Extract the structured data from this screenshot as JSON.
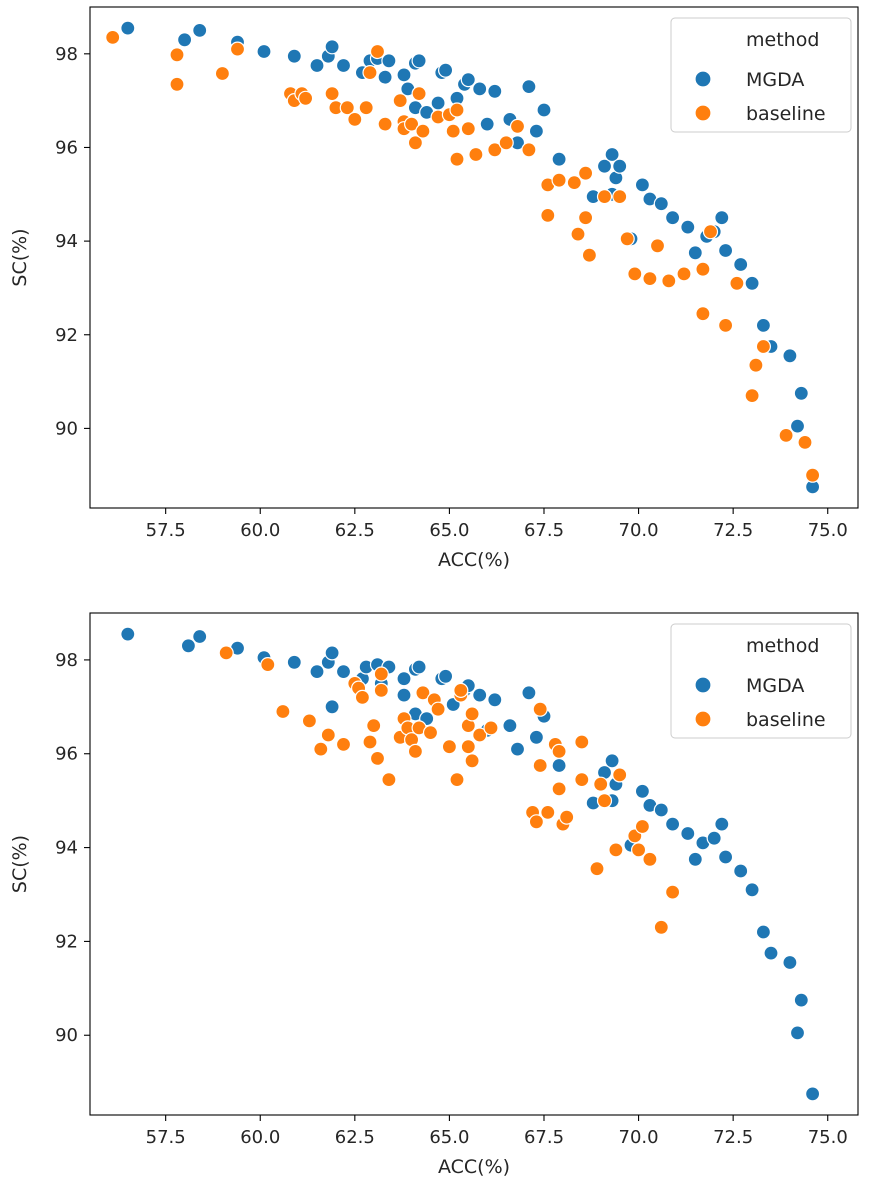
{
  "chart_data": [
    {
      "type": "scatter",
      "title": "",
      "xlabel": "ACC(%)",
      "ylabel": "SC(%)",
      "xlim": [
        55.5,
        75.8
      ],
      "ylim": [
        88.3,
        99.0
      ],
      "xticks": [
        57.5,
        60.0,
        62.5,
        65.0,
        67.5,
        70.0,
        72.5,
        75.0
      ],
      "xtick_labels": [
        "57.5",
        "60.0",
        "62.5",
        "65.0",
        "67.5",
        "70.0",
        "72.5",
        "75.0"
      ],
      "yticks": [
        90,
        92,
        94,
        96,
        98
      ],
      "ytick_labels": [
        "90",
        "92",
        "94",
        "96",
        "98"
      ],
      "grid": false,
      "legend": {
        "title": "method",
        "placement": "upper-right"
      },
      "series": [
        {
          "name": "MGDA",
          "color": "#1f77b4",
          "points": [
            [
              56.5,
              98.55
            ],
            [
              58.0,
              98.3
            ],
            [
              58.4,
              98.5
            ],
            [
              59.4,
              98.25
            ],
            [
              60.1,
              98.05
            ],
            [
              60.9,
              97.95
            ],
            [
              61.5,
              97.75
            ],
            [
              61.8,
              97.95
            ],
            [
              61.9,
              98.15
            ],
            [
              62.2,
              97.75
            ],
            [
              62.7,
              97.6
            ],
            [
              62.9,
              97.85
            ],
            [
              63.1,
              97.9
            ],
            [
              63.3,
              97.5
            ],
            [
              63.4,
              97.85
            ],
            [
              63.8,
              97.55
            ],
            [
              63.9,
              97.25
            ],
            [
              64.1,
              97.8
            ],
            [
              64.2,
              97.85
            ],
            [
              64.1,
              96.85
            ],
            [
              64.4,
              96.75
            ],
            [
              64.7,
              96.95
            ],
            [
              64.8,
              97.6
            ],
            [
              64.9,
              97.65
            ],
            [
              65.2,
              97.05
            ],
            [
              65.4,
              97.35
            ],
            [
              65.5,
              97.45
            ],
            [
              65.8,
              97.25
            ],
            [
              66.0,
              96.5
            ],
            [
              66.2,
              97.2
            ],
            [
              66.6,
              96.6
            ],
            [
              66.8,
              96.1
            ],
            [
              67.1,
              97.3
            ],
            [
              67.3,
              96.35
            ],
            [
              67.5,
              96.8
            ],
            [
              67.9,
              95.75
            ],
            [
              68.8,
              94.95
            ],
            [
              69.1,
              95.6
            ],
            [
              69.3,
              95.85
            ],
            [
              69.4,
              95.35
            ],
            [
              69.3,
              95.0
            ],
            [
              69.5,
              95.6
            ],
            [
              69.8,
              94.05
            ],
            [
              70.1,
              95.2
            ],
            [
              70.3,
              94.9
            ],
            [
              70.6,
              94.8
            ],
            [
              70.9,
              94.5
            ],
            [
              71.3,
              94.3
            ],
            [
              71.5,
              93.75
            ],
            [
              71.8,
              94.1
            ],
            [
              72.0,
              94.2
            ],
            [
              72.2,
              94.5
            ],
            [
              72.3,
              93.8
            ],
            [
              72.7,
              93.5
            ],
            [
              73.0,
              93.1
            ],
            [
              73.3,
              92.2
            ],
            [
              73.5,
              91.75
            ],
            [
              74.0,
              91.55
            ],
            [
              74.2,
              90.05
            ],
            [
              74.3,
              90.75
            ],
            [
              74.6,
              88.75
            ]
          ]
        },
        {
          "name": "baseline",
          "color": "#ff7f0e",
          "points": [
            [
              56.1,
              98.35
            ],
            [
              57.8,
              97.98
            ],
            [
              57.8,
              97.35
            ],
            [
              59.0,
              97.58
            ],
            [
              59.4,
              98.1
            ],
            [
              60.8,
              97.15
            ],
            [
              60.9,
              97.0
            ],
            [
              61.1,
              97.15
            ],
            [
              61.2,
              97.05
            ],
            [
              61.9,
              97.15
            ],
            [
              62.0,
              96.85
            ],
            [
              62.3,
              96.85
            ],
            [
              62.5,
              96.6
            ],
            [
              62.8,
              96.85
            ],
            [
              62.9,
              97.6
            ],
            [
              63.1,
              98.05
            ],
            [
              63.3,
              96.5
            ],
            [
              63.7,
              97.0
            ],
            [
              63.8,
              96.55
            ],
            [
              63.8,
              96.4
            ],
            [
              64.0,
              96.5
            ],
            [
              64.1,
              96.1
            ],
            [
              64.2,
              97.15
            ],
            [
              64.3,
              96.35
            ],
            [
              64.7,
              96.65
            ],
            [
              65.0,
              96.7
            ],
            [
              65.1,
              96.35
            ],
            [
              65.2,
              96.8
            ],
            [
              65.2,
              95.75
            ],
            [
              65.5,
              96.4
            ],
            [
              65.7,
              95.85
            ],
            [
              66.2,
              95.95
            ],
            [
              66.5,
              96.1
            ],
            [
              66.8,
              96.45
            ],
            [
              67.1,
              95.95
            ],
            [
              67.6,
              95.2
            ],
            [
              67.6,
              94.55
            ],
            [
              67.9,
              95.3
            ],
            [
              68.3,
              95.25
            ],
            [
              68.4,
              94.15
            ],
            [
              68.6,
              94.5
            ],
            [
              68.6,
              95.45
            ],
            [
              68.7,
              93.7
            ],
            [
              69.1,
              94.95
            ],
            [
              69.5,
              94.95
            ],
            [
              69.7,
              94.05
            ],
            [
              69.9,
              93.3
            ],
            [
              70.3,
              93.2
            ],
            [
              70.5,
              93.9
            ],
            [
              70.8,
              93.15
            ],
            [
              71.2,
              93.3
            ],
            [
              71.7,
              93.4
            ],
            [
              71.9,
              94.2
            ],
            [
              71.7,
              92.45
            ],
            [
              72.3,
              92.2
            ],
            [
              72.6,
              93.1
            ],
            [
              73.0,
              90.7
            ],
            [
              73.1,
              91.35
            ],
            [
              73.3,
              91.75
            ],
            [
              73.9,
              89.85
            ],
            [
              74.4,
              89.7
            ],
            [
              74.6,
              89.0
            ]
          ]
        }
      ]
    },
    {
      "type": "scatter",
      "title": "",
      "xlabel": "ACC(%)",
      "ylabel": "SC(%)",
      "xlim": [
        55.5,
        75.8
      ],
      "ylim": [
        88.3,
        99.0
      ],
      "xticks": [
        57.5,
        60.0,
        62.5,
        65.0,
        67.5,
        70.0,
        72.5,
        75.0
      ],
      "xtick_labels": [
        "57.5",
        "60.0",
        "62.5",
        "65.0",
        "67.5",
        "70.0",
        "72.5",
        "75.0"
      ],
      "yticks": [
        90,
        92,
        94,
        96,
        98
      ],
      "ytick_labels": [
        "90",
        "92",
        "94",
        "96",
        "98"
      ],
      "grid": false,
      "legend": {
        "title": "method",
        "placement": "upper-right"
      },
      "series": [
        {
          "name": "MGDA",
          "color": "#1f77b4",
          "points": [
            [
              56.5,
              98.55
            ],
            [
              58.1,
              98.3
            ],
            [
              58.4,
              98.5
            ],
            [
              59.4,
              98.25
            ],
            [
              60.1,
              98.05
            ],
            [
              60.9,
              97.95
            ],
            [
              61.5,
              97.75
            ],
            [
              61.8,
              97.95
            ],
            [
              61.9,
              98.15
            ],
            [
              61.9,
              97.0
            ],
            [
              62.2,
              97.75
            ],
            [
              62.7,
              97.6
            ],
            [
              62.8,
              97.85
            ],
            [
              63.1,
              97.9
            ],
            [
              63.2,
              97.5
            ],
            [
              63.4,
              97.85
            ],
            [
              63.8,
              97.6
            ],
            [
              63.8,
              97.25
            ],
            [
              64.1,
              97.8
            ],
            [
              64.2,
              97.85
            ],
            [
              64.1,
              96.85
            ],
            [
              64.4,
              96.75
            ],
            [
              64.7,
              96.95
            ],
            [
              64.8,
              97.6
            ],
            [
              64.9,
              97.65
            ],
            [
              65.1,
              97.05
            ],
            [
              65.4,
              97.35
            ],
            [
              65.5,
              97.45
            ],
            [
              65.8,
              97.25
            ],
            [
              66.0,
              96.5
            ],
            [
              66.2,
              97.15
            ],
            [
              66.6,
              96.6
            ],
            [
              66.8,
              96.1
            ],
            [
              67.1,
              97.3
            ],
            [
              67.3,
              96.35
            ],
            [
              67.5,
              96.8
            ],
            [
              67.9,
              95.75
            ],
            [
              68.8,
              94.95
            ],
            [
              69.1,
              95.6
            ],
            [
              69.3,
              95.85
            ],
            [
              69.4,
              95.35
            ],
            [
              69.3,
              95.0
            ],
            [
              69.5,
              95.55
            ],
            [
              69.8,
              94.05
            ],
            [
              70.1,
              95.2
            ],
            [
              70.3,
              94.9
            ],
            [
              70.6,
              94.8
            ],
            [
              70.9,
              94.5
            ],
            [
              71.3,
              94.3
            ],
            [
              71.5,
              93.75
            ],
            [
              71.7,
              94.1
            ],
            [
              72.0,
              94.2
            ],
            [
              72.2,
              94.5
            ],
            [
              72.3,
              93.8
            ],
            [
              72.7,
              93.5
            ],
            [
              73.0,
              93.1
            ],
            [
              73.3,
              92.2
            ],
            [
              73.5,
              91.75
            ],
            [
              74.0,
              91.55
            ],
            [
              74.2,
              90.05
            ],
            [
              74.3,
              90.75
            ],
            [
              74.6,
              88.75
            ]
          ]
        },
        {
          "name": "baseline",
          "color": "#ff7f0e",
          "points": [
            [
              59.1,
              98.15
            ],
            [
              60.2,
              97.9
            ],
            [
              60.6,
              96.9
            ],
            [
              61.3,
              96.7
            ],
            [
              61.6,
              96.1
            ],
            [
              61.8,
              96.4
            ],
            [
              62.2,
              96.2
            ],
            [
              62.5,
              97.5
            ],
            [
              62.6,
              97.4
            ],
            [
              62.7,
              97.2
            ],
            [
              62.9,
              96.25
            ],
            [
              63.0,
              96.6
            ],
            [
              63.1,
              95.9
            ],
            [
              63.2,
              97.35
            ],
            [
              63.2,
              97.7
            ],
            [
              63.4,
              95.45
            ],
            [
              63.7,
              96.35
            ],
            [
              63.8,
              96.75
            ],
            [
              63.9,
              96.55
            ],
            [
              64.0,
              96.3
            ],
            [
              64.1,
              96.05
            ],
            [
              64.2,
              96.55
            ],
            [
              64.3,
              97.3
            ],
            [
              64.5,
              96.45
            ],
            [
              64.6,
              97.15
            ],
            [
              64.7,
              96.95
            ],
            [
              65.0,
              96.15
            ],
            [
              65.2,
              95.45
            ],
            [
              65.3,
              97.25
            ],
            [
              65.3,
              97.35
            ],
            [
              65.5,
              96.15
            ],
            [
              65.5,
              96.6
            ],
            [
              65.6,
              96.85
            ],
            [
              65.6,
              95.85
            ],
            [
              65.8,
              96.4
            ],
            [
              66.1,
              96.55
            ],
            [
              67.2,
              94.75
            ],
            [
              67.3,
              94.55
            ],
            [
              67.4,
              95.75
            ],
            [
              67.4,
              96.95
            ],
            [
              67.6,
              94.75
            ],
            [
              67.8,
              96.2
            ],
            [
              67.9,
              96.05
            ],
            [
              67.9,
              95.25
            ],
            [
              68.0,
              94.5
            ],
            [
              68.1,
              94.65
            ],
            [
              68.5,
              96.25
            ],
            [
              68.5,
              95.45
            ],
            [
              68.9,
              93.55
            ],
            [
              69.0,
              95.35
            ],
            [
              69.1,
              95.0
            ],
            [
              69.4,
              93.95
            ],
            [
              69.5,
              95.55
            ],
            [
              69.9,
              94.25
            ],
            [
              70.0,
              93.95
            ],
            [
              70.1,
              94.45
            ],
            [
              70.3,
              93.75
            ],
            [
              70.6,
              92.3
            ],
            [
              70.9,
              93.05
            ]
          ]
        }
      ]
    }
  ]
}
